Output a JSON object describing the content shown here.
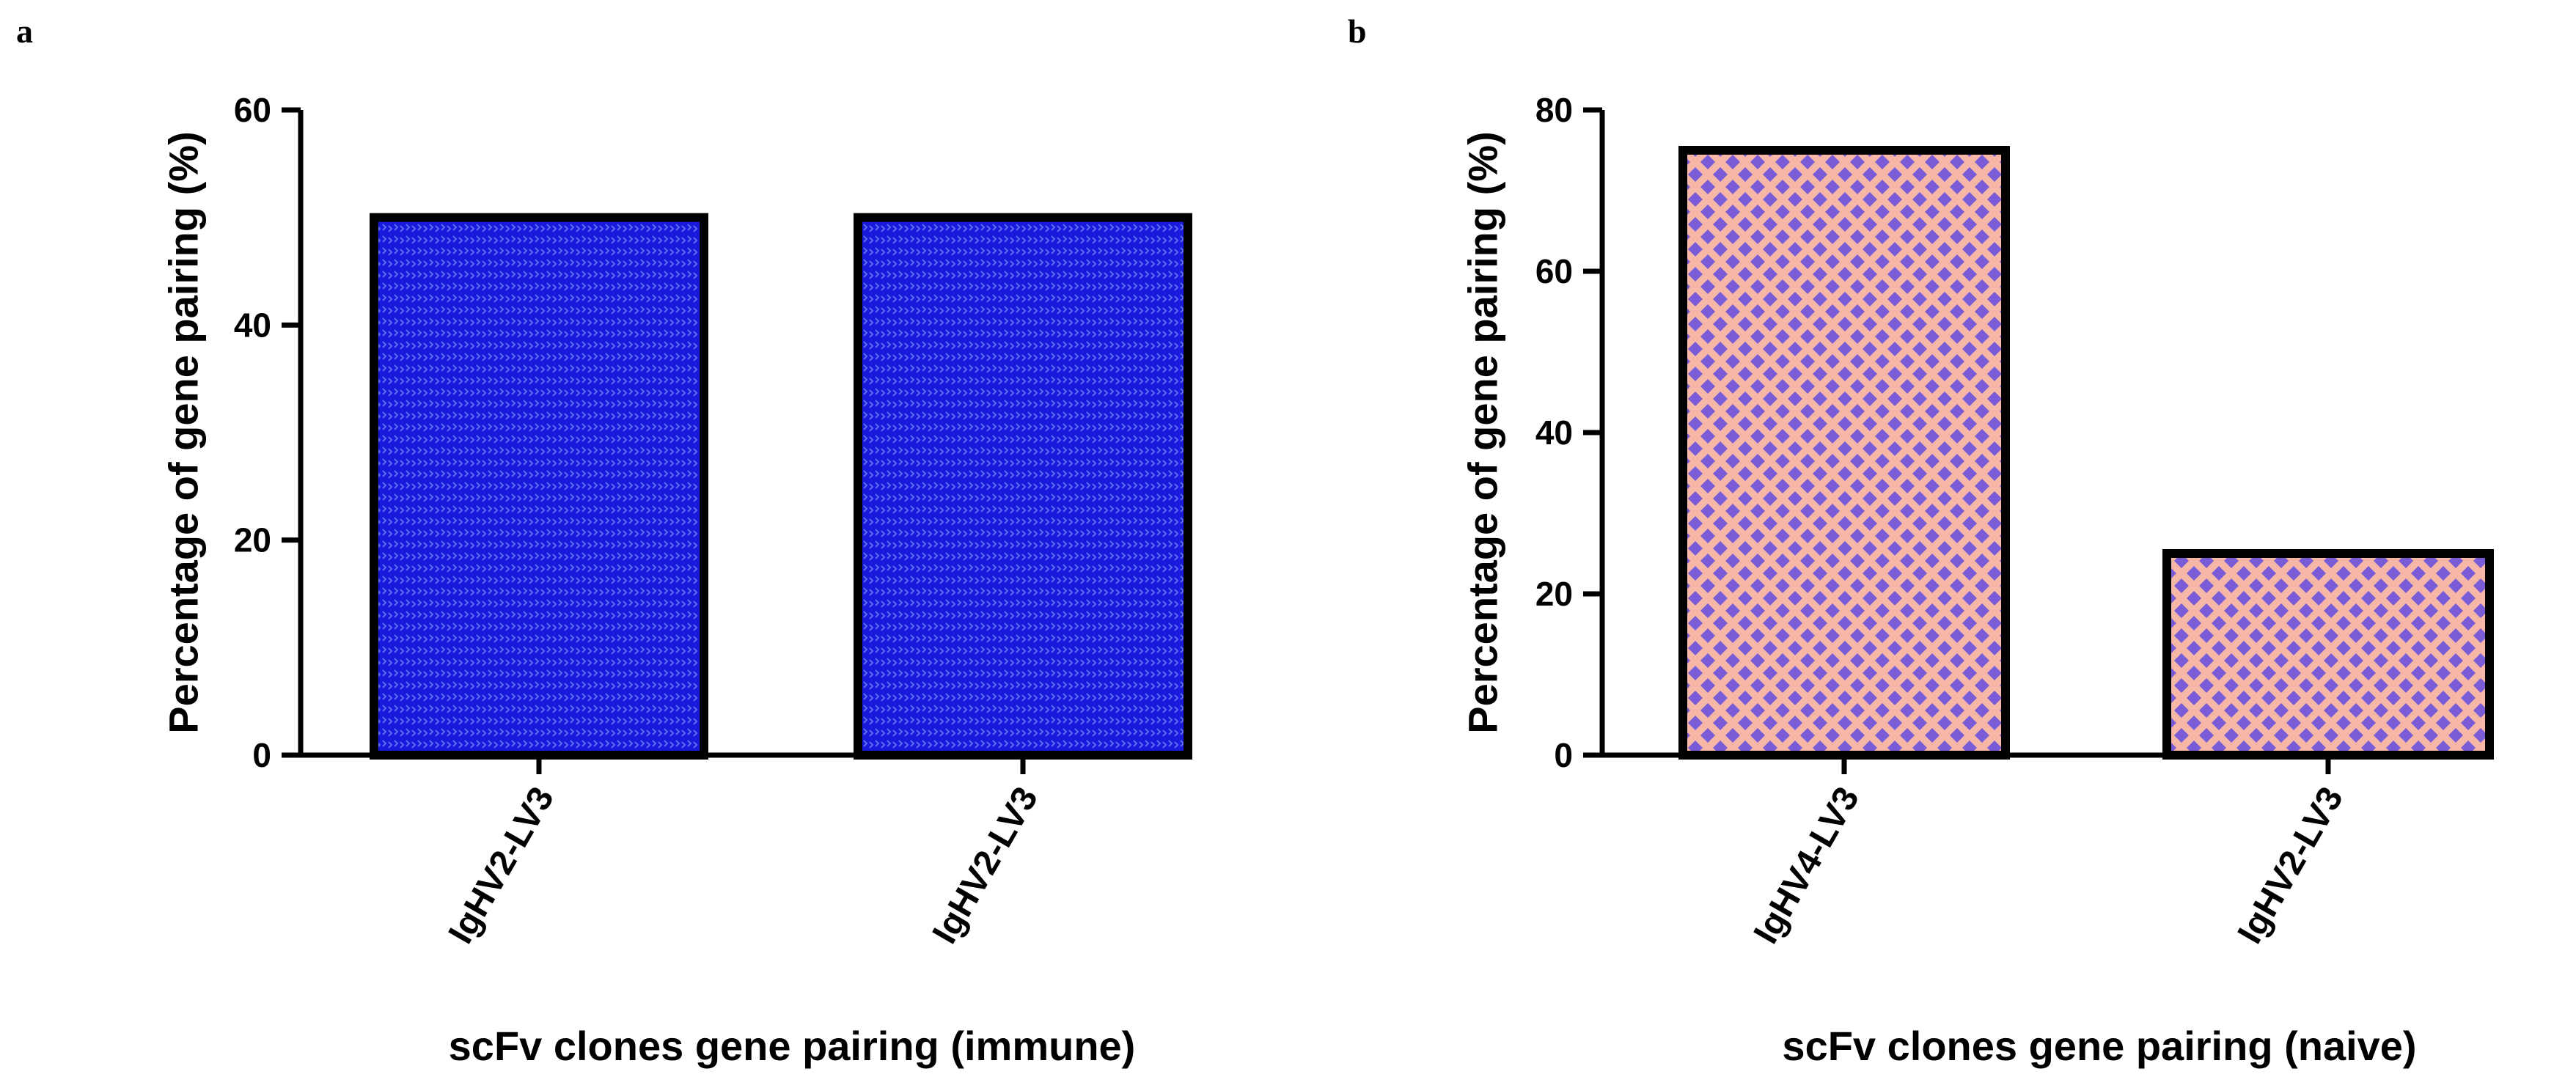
{
  "colors": {
    "a_bar_fill": "#1a1adb",
    "a_bar_pattern": "#5a6cf0",
    "b_bar_fill": "#f6b7a6",
    "b_bar_pattern": "#7a5cd6"
  },
  "chart_data": [
    {
      "type": "bar",
      "panel": "a",
      "categories": [
        "IgHV2-LV3",
        "IgHV2-LV3"
      ],
      "values": [
        50,
        50
      ],
      "xlabel": "scFv clones gene pairing (immune)",
      "ylabel": "Percentage of gene pairing (%)",
      "ylim": [
        0,
        60
      ],
      "yticks": [
        0,
        20,
        40,
        60
      ]
    },
    {
      "type": "bar",
      "panel": "b",
      "categories": [
        "IgHV4-LV3",
        "IgHV2-LV3"
      ],
      "values": [
        75,
        25
      ],
      "xlabel": "scFv clones gene pairing (naive)",
      "ylabel": "Percentage of gene pairing (%)",
      "ylim": [
        0,
        80
      ],
      "yticks": [
        0,
        20,
        40,
        60,
        80
      ]
    }
  ]
}
